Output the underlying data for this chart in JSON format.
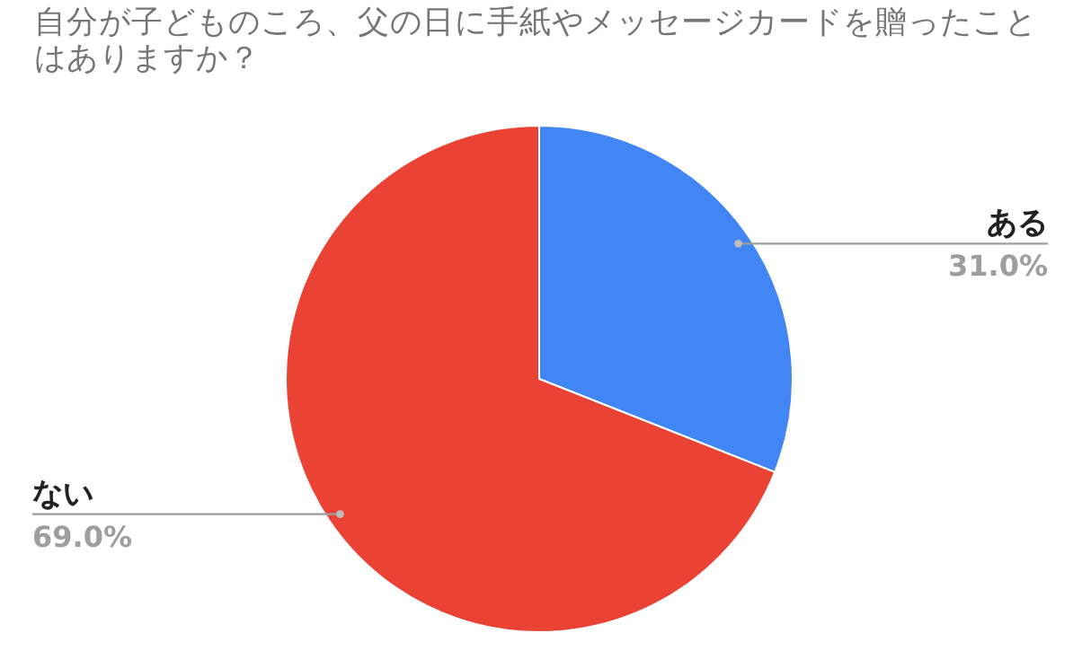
{
  "chart_data": {
    "type": "pie",
    "title": "自分が子どものころ、父の日に手紙やメッセージカードを贈ったことはありますか？",
    "categories": [
      "ある",
      "ない"
    ],
    "values": [
      31.0,
      69.0
    ],
    "colors": [
      "#4285f4",
      "#ea4335"
    ],
    "value_labels": [
      "31.0%",
      "69.0%"
    ],
    "legend": false
  }
}
